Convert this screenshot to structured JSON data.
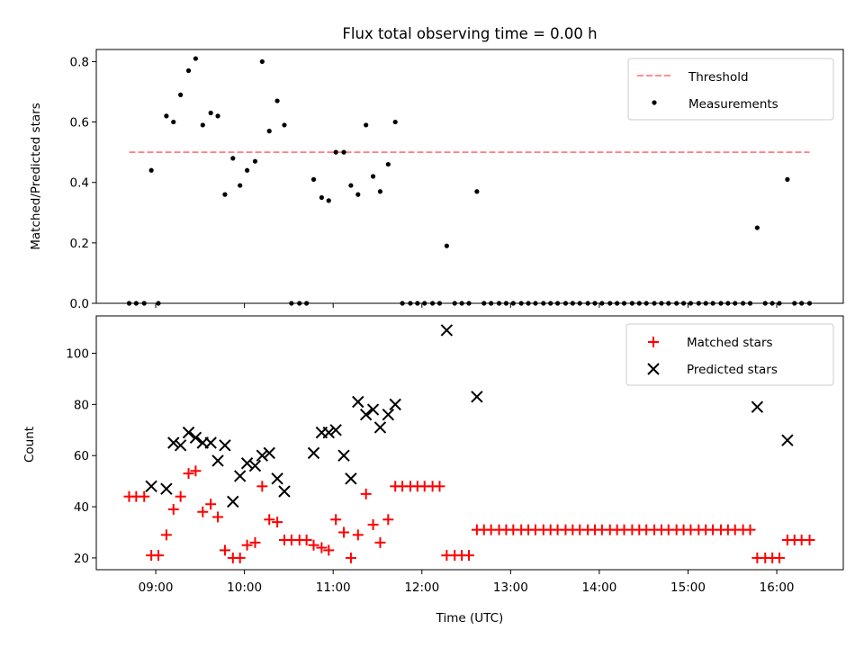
{
  "chart_data": [
    {
      "type": "scatter",
      "title": "Flux total observing time = 0.00 h",
      "xlabel": "",
      "ylabel": "Matched/Predicted stars",
      "xlim": [
        8.33,
        16.75
      ],
      "ylim": [
        0,
        0.84
      ],
      "yticks": [
        0,
        0.2,
        0.4,
        0.6,
        0.8
      ],
      "ytick_labels": [
        "0.0",
        "0.2",
        "0.4",
        "0.6",
        "0.8"
      ],
      "legend": {
        "placement": "upper right",
        "entries": [
          "Threshold",
          "Measurements"
        ]
      },
      "threshold": {
        "name": "Threshold",
        "value": 0.5,
        "x": [
          8.7,
          16.37
        ],
        "color": "#ff7f7f",
        "style": "dashed"
      },
      "measurements": {
        "name": "Measurements",
        "color": "#000000",
        "points": [
          [
            8.7,
            0.0
          ],
          [
            8.78,
            0.0
          ],
          [
            8.87,
            0.0
          ],
          [
            8.95,
            0.44
          ],
          [
            9.03,
            0.0
          ],
          [
            9.12,
            0.62
          ],
          [
            9.2,
            0.6
          ],
          [
            9.28,
            0.69
          ],
          [
            9.37,
            0.77
          ],
          [
            9.45,
            0.81
          ],
          [
            9.53,
            0.59
          ],
          [
            9.62,
            0.63
          ],
          [
            9.7,
            0.62
          ],
          [
            9.78,
            0.36
          ],
          [
            9.87,
            0.48
          ],
          [
            9.95,
            0.39
          ],
          [
            10.03,
            0.44
          ],
          [
            10.12,
            0.47
          ],
          [
            10.2,
            0.8
          ],
          [
            10.28,
            0.57
          ],
          [
            10.37,
            0.67
          ],
          [
            10.45,
            0.59
          ],
          [
            10.53,
            0.0
          ],
          [
            10.62,
            0.0
          ],
          [
            10.7,
            0.0
          ],
          [
            10.78,
            0.41
          ],
          [
            10.87,
            0.35
          ],
          [
            10.95,
            0.34
          ],
          [
            11.03,
            0.5
          ],
          [
            11.12,
            0.5
          ],
          [
            11.2,
            0.39
          ],
          [
            11.28,
            0.36
          ],
          [
            11.37,
            0.59
          ],
          [
            11.45,
            0.42
          ],
          [
            11.53,
            0.37
          ],
          [
            11.62,
            0.46
          ],
          [
            11.7,
            0.6
          ],
          [
            11.78,
            0.0
          ],
          [
            11.87,
            0.0
          ],
          [
            11.95,
            0.0
          ],
          [
            12.03,
            0.0
          ],
          [
            12.12,
            0.0
          ],
          [
            12.2,
            0.0
          ],
          [
            12.28,
            0.19
          ],
          [
            12.37,
            0.0
          ],
          [
            12.45,
            0.0
          ],
          [
            12.53,
            0.0
          ],
          [
            12.62,
            0.37
          ],
          [
            12.7,
            0.0
          ],
          [
            12.78,
            0.0
          ],
          [
            12.87,
            0.0
          ],
          [
            12.95,
            0.0
          ],
          [
            13.03,
            0.0
          ],
          [
            13.12,
            0.0
          ],
          [
            13.2,
            0.0
          ],
          [
            13.28,
            0.0
          ],
          [
            13.37,
            0.0
          ],
          [
            13.45,
            0.0
          ],
          [
            13.53,
            0.0
          ],
          [
            13.62,
            0.0
          ],
          [
            13.7,
            0.0
          ],
          [
            13.78,
            0.0
          ],
          [
            13.87,
            0.0
          ],
          [
            13.95,
            0.0
          ],
          [
            14.03,
            0.0
          ],
          [
            14.12,
            0.0
          ],
          [
            14.2,
            0.0
          ],
          [
            14.28,
            0.0
          ],
          [
            14.37,
            0.0
          ],
          [
            14.45,
            0.0
          ],
          [
            14.53,
            0.0
          ],
          [
            14.62,
            0.0
          ],
          [
            14.7,
            0.0
          ],
          [
            14.78,
            0.0
          ],
          [
            14.87,
            0.0
          ],
          [
            14.95,
            0.0
          ],
          [
            15.03,
            0.0
          ],
          [
            15.12,
            0.0
          ],
          [
            15.2,
            0.0
          ],
          [
            15.28,
            0.0
          ],
          [
            15.37,
            0.0
          ],
          [
            15.45,
            0.0
          ],
          [
            15.53,
            0.0
          ],
          [
            15.62,
            0.0
          ],
          [
            15.7,
            0.0
          ],
          [
            15.78,
            0.25
          ],
          [
            15.87,
            0.0
          ],
          [
            15.95,
            0.0
          ],
          [
            16.03,
            0.0
          ],
          [
            16.12,
            0.41
          ],
          [
            16.2,
            0.0
          ],
          [
            16.28,
            0.0
          ],
          [
            16.37,
            0.0
          ]
        ]
      }
    },
    {
      "type": "scatter",
      "title": "",
      "xlabel": "Time (UTC)",
      "ylabel": "Count",
      "xlim": [
        8.33,
        16.75
      ],
      "ylim": [
        15.4,
        114.6
      ],
      "yticks": [
        20,
        40,
        60,
        80,
        100
      ],
      "ytick_labels": [
        "20",
        "40",
        "60",
        "80",
        "100"
      ],
      "xticks": [
        9,
        10,
        11,
        12,
        13,
        14,
        15,
        16
      ],
      "xtick_labels": [
        "09:00",
        "10:00",
        "11:00",
        "12:00",
        "13:00",
        "14:00",
        "15:00",
        "16:00"
      ],
      "legend": {
        "placement": "upper right",
        "entries": [
          "Matched stars",
          "Predicted stars"
        ]
      },
      "series": [
        {
          "name": "Matched stars",
          "marker": "+",
          "color": "#ff0000",
          "points": [
            [
              8.7,
              44
            ],
            [
              8.78,
              44
            ],
            [
              8.87,
              44
            ],
            [
              8.95,
              21
            ],
            [
              9.03,
              21
            ],
            [
              9.12,
              29
            ],
            [
              9.2,
              39
            ],
            [
              9.28,
              44
            ],
            [
              9.37,
              53
            ],
            [
              9.45,
              54
            ],
            [
              9.53,
              38
            ],
            [
              9.62,
              41
            ],
            [
              9.7,
              36
            ],
            [
              9.78,
              23
            ],
            [
              9.87,
              20
            ],
            [
              9.95,
              20
            ],
            [
              10.03,
              25
            ],
            [
              10.12,
              26
            ],
            [
              10.2,
              48
            ],
            [
              10.28,
              35
            ],
            [
              10.37,
              34
            ],
            [
              10.45,
              27
            ],
            [
              10.53,
              27
            ],
            [
              10.62,
              27
            ],
            [
              10.7,
              27
            ],
            [
              10.78,
              25
            ],
            [
              10.87,
              24
            ],
            [
              10.95,
              23
            ],
            [
              11.03,
              35
            ],
            [
              11.12,
              30
            ],
            [
              11.2,
              20
            ],
            [
              11.28,
              29
            ],
            [
              11.37,
              45
            ],
            [
              11.45,
              33
            ],
            [
              11.53,
              26
            ],
            [
              11.62,
              35
            ],
            [
              11.7,
              48
            ],
            [
              11.78,
              48
            ],
            [
              11.87,
              48
            ],
            [
              11.95,
              48
            ],
            [
              12.03,
              48
            ],
            [
              12.12,
              48
            ],
            [
              12.2,
              48
            ],
            [
              12.28,
              21
            ],
            [
              12.37,
              21
            ],
            [
              12.45,
              21
            ],
            [
              12.53,
              21
            ],
            [
              12.62,
              31
            ],
            [
              12.7,
              31
            ],
            [
              12.78,
              31
            ],
            [
              12.87,
              31
            ],
            [
              12.95,
              31
            ],
            [
              13.03,
              31
            ],
            [
              13.12,
              31
            ],
            [
              13.2,
              31
            ],
            [
              13.28,
              31
            ],
            [
              13.37,
              31
            ],
            [
              13.45,
              31
            ],
            [
              13.53,
              31
            ],
            [
              13.62,
              31
            ],
            [
              13.7,
              31
            ],
            [
              13.78,
              31
            ],
            [
              13.87,
              31
            ],
            [
              13.95,
              31
            ],
            [
              14.03,
              31
            ],
            [
              14.12,
              31
            ],
            [
              14.2,
              31
            ],
            [
              14.28,
              31
            ],
            [
              14.37,
              31
            ],
            [
              14.45,
              31
            ],
            [
              14.53,
              31
            ],
            [
              14.62,
              31
            ],
            [
              14.7,
              31
            ],
            [
              14.78,
              31
            ],
            [
              14.87,
              31
            ],
            [
              14.95,
              31
            ],
            [
              15.03,
              31
            ],
            [
              15.12,
              31
            ],
            [
              15.2,
              31
            ],
            [
              15.28,
              31
            ],
            [
              15.37,
              31
            ],
            [
              15.45,
              31
            ],
            [
              15.53,
              31
            ],
            [
              15.62,
              31
            ],
            [
              15.7,
              31
            ],
            [
              15.78,
              20
            ],
            [
              15.87,
              20
            ],
            [
              15.95,
              20
            ],
            [
              16.03,
              20
            ],
            [
              16.12,
              27
            ],
            [
              16.2,
              27
            ],
            [
              16.28,
              27
            ],
            [
              16.37,
              27
            ]
          ]
        },
        {
          "name": "Predicted stars",
          "marker": "x",
          "color": "#000000",
          "points": [
            [
              8.95,
              48
            ],
            [
              9.12,
              47
            ],
            [
              9.2,
              65
            ],
            [
              9.28,
              64
            ],
            [
              9.37,
              69
            ],
            [
              9.45,
              67
            ],
            [
              9.53,
              65
            ],
            [
              9.62,
              65
            ],
            [
              9.7,
              58
            ],
            [
              9.78,
              64
            ],
            [
              9.87,
              42
            ],
            [
              9.95,
              52
            ],
            [
              10.03,
              57
            ],
            [
              10.12,
              56
            ],
            [
              10.2,
              60
            ],
            [
              10.28,
              61
            ],
            [
              10.37,
              51
            ],
            [
              10.45,
              46
            ],
            [
              10.78,
              61
            ],
            [
              10.87,
              69
            ],
            [
              10.95,
              69
            ],
            [
              11.03,
              70
            ],
            [
              11.12,
              60
            ],
            [
              11.2,
              51
            ],
            [
              11.28,
              81
            ],
            [
              11.37,
              76
            ],
            [
              11.45,
              78
            ],
            [
              11.53,
              71
            ],
            [
              11.62,
              76
            ],
            [
              11.7,
              80
            ],
            [
              12.28,
              109
            ],
            [
              12.62,
              83
            ],
            [
              15.78,
              79
            ],
            [
              16.12,
              66
            ]
          ]
        }
      ]
    }
  ]
}
